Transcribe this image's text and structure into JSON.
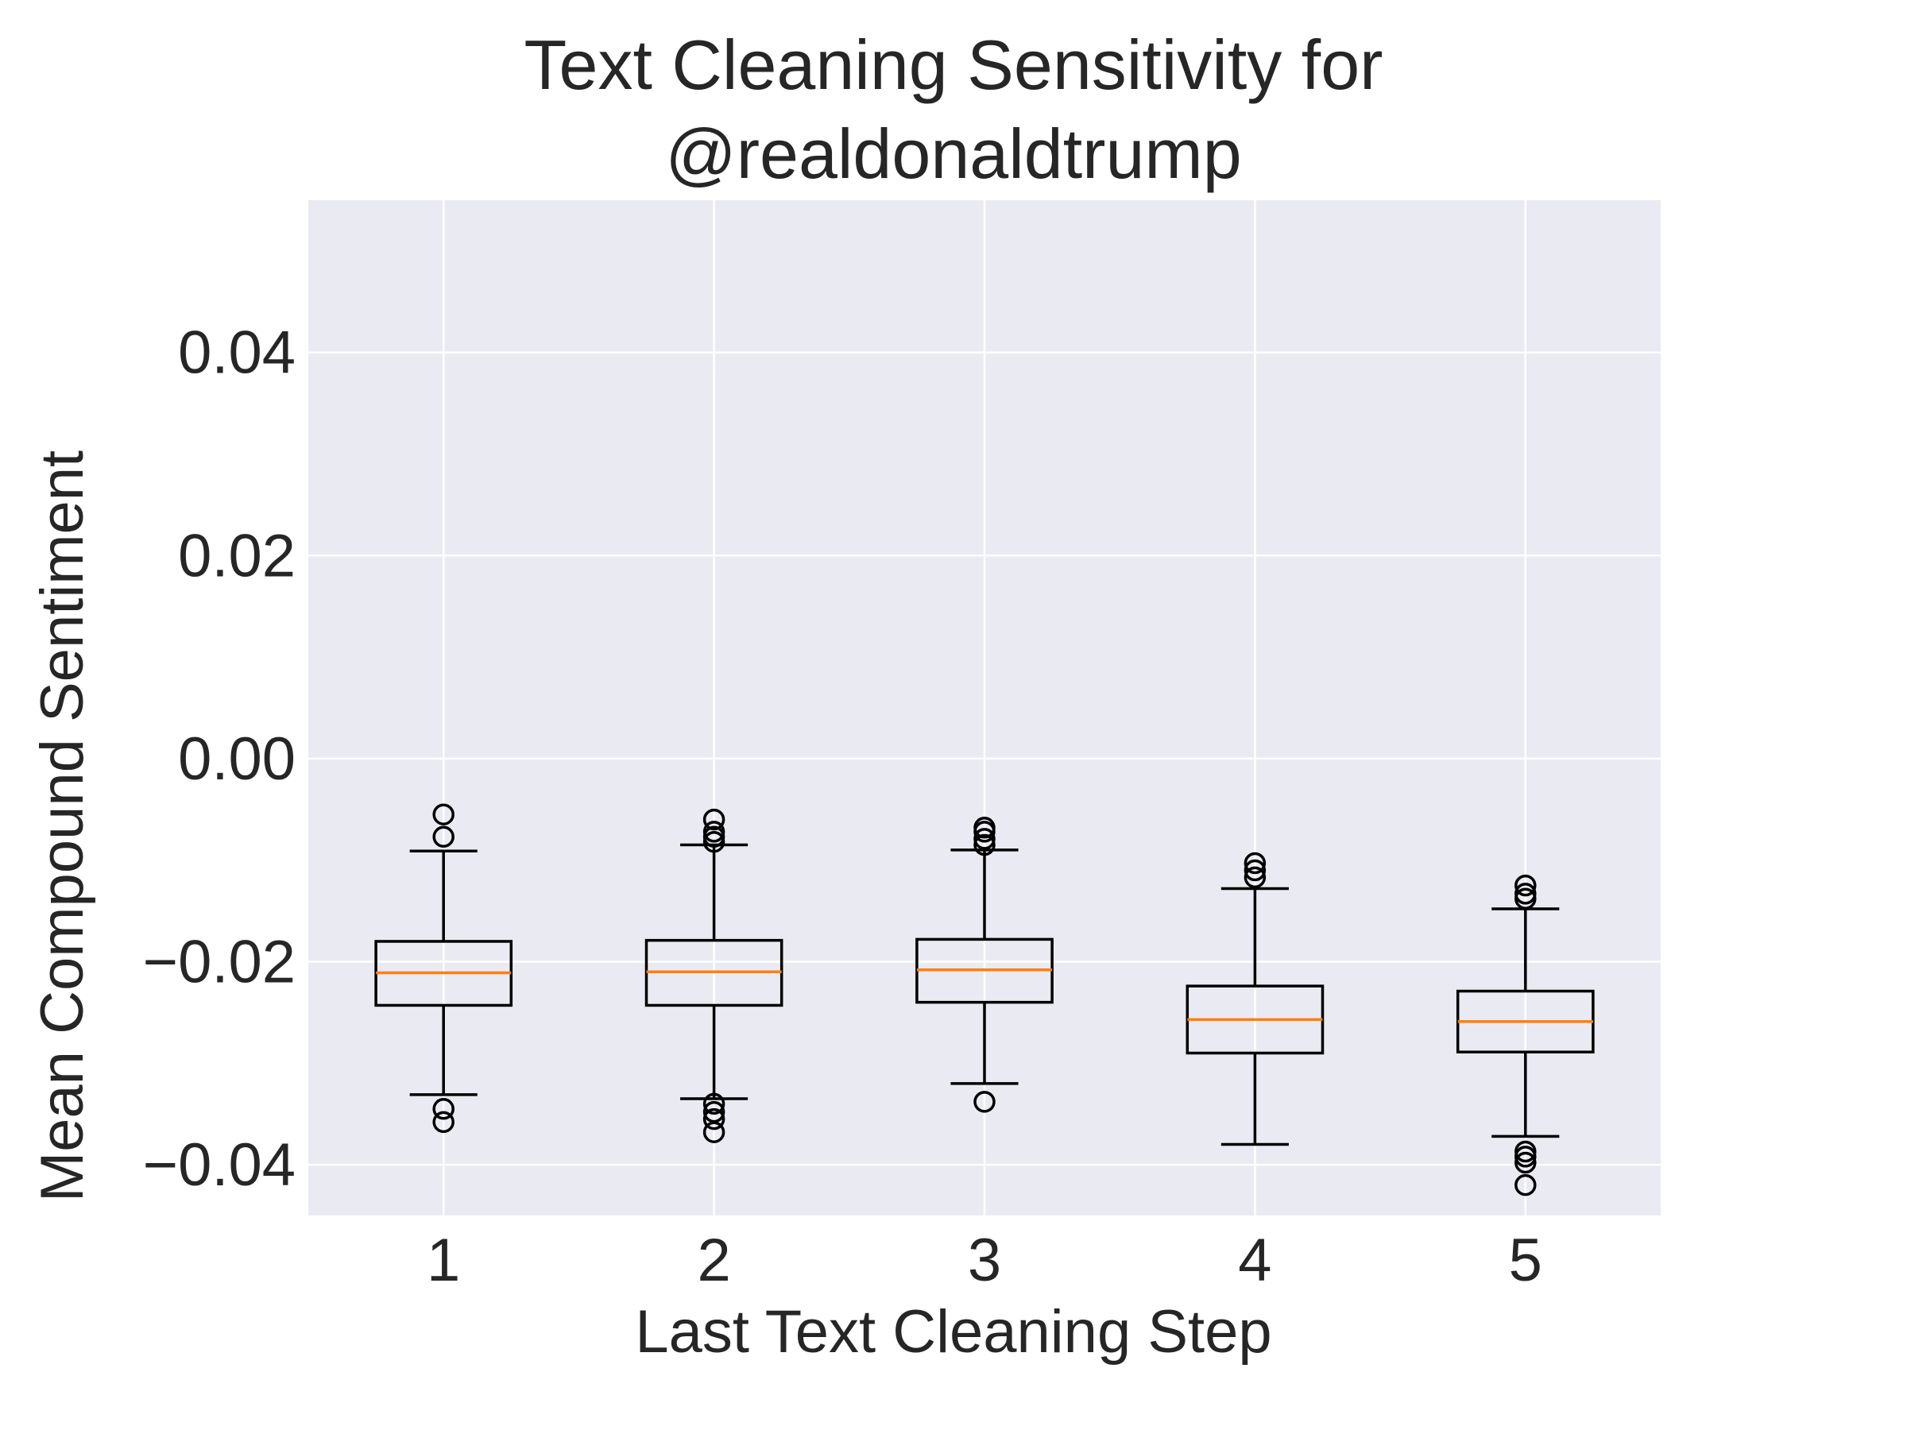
{
  "chart_data": {
    "type": "boxplot",
    "title": "Text Cleaning Sensitivity for\n@realdonaldtrump",
    "title_lines": [
      "Text Cleaning Sensitivity for",
      "@realdonaldtrump"
    ],
    "xlabel": "Last Text Cleaning Step",
    "ylabel": "Mean Compound Sentiment",
    "categories": [
      "1",
      "2",
      "3",
      "4",
      "5"
    ],
    "ylim": [
      -0.045,
      0.055
    ],
    "yticks": [
      -0.04,
      -0.02,
      0.0,
      0.02,
      0.04
    ],
    "ytick_labels": [
      "−0.04",
      "−0.02",
      "0.00",
      "0.02",
      "0.04"
    ],
    "grid": true,
    "background": "#eaeaf2",
    "grid_color": "#ffffff",
    "box_color": "#000000",
    "median_color": "#ff7f0e",
    "text_color": "#262626",
    "boxes": [
      {
        "category": "1",
        "whisker_low": -0.0331,
        "q1": -0.0243,
        "median": -0.0211,
        "q3": -0.018,
        "whisker_high": -0.0091,
        "outliers": [
          -0.0055,
          -0.0077,
          -0.0345,
          -0.0358
        ]
      },
      {
        "category": "2",
        "whisker_low": -0.0335,
        "q1": -0.0243,
        "median": -0.021,
        "q3": -0.0179,
        "whisker_high": -0.0085,
        "outliers": [
          -0.006,
          -0.0072,
          -0.0077,
          -0.0082,
          -0.034,
          -0.0348,
          -0.0355,
          -0.0368
        ]
      },
      {
        "category": "3",
        "whisker_low": -0.032,
        "q1": -0.024,
        "median": -0.0208,
        "q3": -0.0178,
        "whisker_high": -0.009,
        "outliers": [
          -0.0068,
          -0.0072,
          -0.0079,
          -0.0085,
          -0.0338
        ]
      },
      {
        "category": "4",
        "whisker_low": -0.038,
        "q1": -0.029,
        "median": -0.0257,
        "q3": -0.0224,
        "whisker_high": -0.0128,
        "outliers": [
          -0.0103,
          -0.011,
          -0.0117
        ]
      },
      {
        "category": "5",
        "whisker_low": -0.0372,
        "q1": -0.0289,
        "median": -0.0259,
        "q3": -0.0229,
        "whisker_high": -0.0148,
        "outliers": [
          -0.0125,
          -0.0133,
          -0.0138,
          -0.0387,
          -0.0392,
          -0.0398,
          -0.042
        ]
      }
    ]
  }
}
